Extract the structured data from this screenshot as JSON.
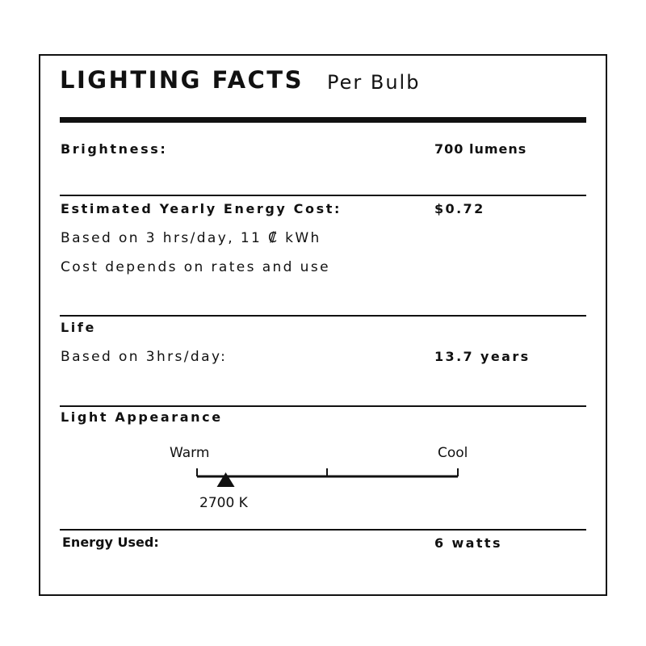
{
  "header": {
    "title": "LIGHTING FACTS",
    "subtitle": "Per Bulb"
  },
  "brightness": {
    "label": "Brightness:",
    "value": "700 lumens"
  },
  "energy_cost": {
    "label": "Estimated Yearly Energy Cost:",
    "value": "$0.72",
    "note1": "Based on 3 hrs/day, 11 ₡ kWh",
    "note2": "Cost depends on rates and use"
  },
  "life": {
    "label": "Life",
    "note": "Based on 3hrs/day:",
    "value": "13.7 years"
  },
  "appearance": {
    "label": "Light Appearance",
    "warm": "Warm",
    "cool": "Cool",
    "marker_label": "2700 K",
    "marker_fraction": 0.11
  },
  "energy_used": {
    "label": "Energy Used:",
    "value": "6 watts"
  }
}
